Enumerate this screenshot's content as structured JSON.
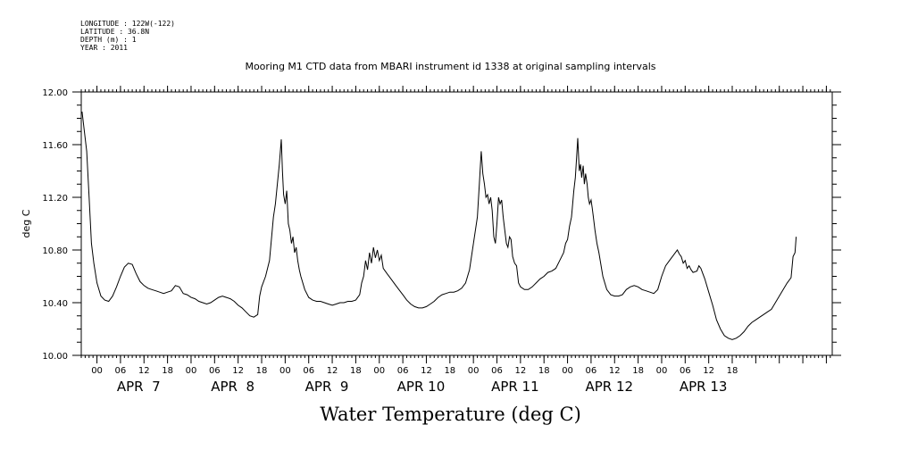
{
  "header": {
    "longitude": "LONGITUDE : 122W(-122)",
    "latitude": "LATITUDE : 36.8N",
    "depth": "DEPTH (m) : 1",
    "year": "YEAR : 2011",
    "title": "Mooring M1 CTD data from MBARI instrument id 1338 at original sampling intervals"
  },
  "footer": {
    "variable_title": "Water Temperature (deg C)"
  },
  "chart_data": {
    "type": "line",
    "title": "Mooring M1 CTD data from MBARI instrument id 1338 at original sampling intervals",
    "xlabel": "",
    "ylabel": "deg C",
    "ylim": [
      10.0,
      12.0
    ],
    "xlim_hours": [
      -4,
      19.5
    ],
    "y_ticks": [
      "10.00",
      "10.40",
      "10.80",
      "11.20",
      "11.60",
      "12.00"
    ],
    "x_tick_labels": [
      "00",
      "06",
      "12",
      "18",
      "00",
      "06",
      "12",
      "18",
      "00",
      "06",
      "12",
      "18",
      "00",
      "06",
      "12",
      "18",
      "00",
      "06",
      "12",
      "18",
      "00",
      "06",
      "12",
      "18",
      "00",
      "06",
      "12",
      "18"
    ],
    "day_labels": [
      "APR  7",
      "APR  8",
      "APR  9",
      "APR 10",
      "APR 11",
      "APR 12",
      "APR 13"
    ],
    "grid": false,
    "series": [
      {
        "values": [
          [
            -3.8,
            11.85
          ],
          [
            -3.2,
            11.7
          ],
          [
            -2.6,
            11.55
          ],
          [
            -2.0,
            11.2
          ],
          [
            -1.4,
            10.85
          ],
          [
            -0.8,
            10.7
          ],
          [
            0.0,
            10.55
          ],
          [
            1.0,
            10.45
          ],
          [
            2.0,
            10.42
          ],
          [
            3.0,
            10.41
          ],
          [
            4.0,
            10.45
          ],
          [
            5.0,
            10.52
          ],
          [
            6.0,
            10.6
          ],
          [
            7.0,
            10.67
          ],
          [
            8.0,
            10.7
          ],
          [
            9.0,
            10.69
          ],
          [
            10.0,
            10.62
          ],
          [
            11.0,
            10.56
          ],
          [
            12.0,
            10.53
          ],
          [
            13.0,
            10.51
          ],
          [
            14.0,
            10.5
          ],
          [
            15.0,
            10.49
          ],
          [
            16.0,
            10.48
          ],
          [
            17.0,
            10.47
          ],
          [
            18.0,
            10.48
          ],
          [
            19.0,
            10.49
          ],
          [
            20.0,
            10.53
          ],
          [
            21.0,
            10.52
          ],
          [
            22.0,
            10.47
          ],
          [
            23.0,
            10.46
          ],
          [
            24.0,
            10.44
          ],
          [
            25.0,
            10.43
          ],
          [
            26.0,
            10.41
          ],
          [
            27.0,
            10.4
          ],
          [
            28.0,
            10.39
          ],
          [
            29.0,
            10.4
          ],
          [
            30.0,
            10.42
          ],
          [
            31.0,
            10.44
          ],
          [
            32.0,
            10.45
          ],
          [
            33.0,
            10.44
          ],
          [
            34.0,
            10.43
          ],
          [
            35.0,
            10.41
          ],
          [
            36.0,
            10.38
          ],
          [
            37.0,
            10.36
          ],
          [
            38.0,
            10.33
          ],
          [
            39.0,
            10.3
          ],
          [
            40.0,
            10.29
          ],
          [
            41.0,
            10.31
          ],
          [
            41.5,
            10.45
          ],
          [
            42.0,
            10.52
          ],
          [
            43.0,
            10.6
          ],
          [
            44.0,
            10.72
          ],
          [
            45.0,
            11.05
          ],
          [
            45.5,
            11.15
          ],
          [
            46.0,
            11.3
          ],
          [
            46.5,
            11.45
          ],
          [
            47.0,
            11.64
          ],
          [
            47.3,
            11.4
          ],
          [
            47.6,
            11.22
          ],
          [
            48.0,
            11.15
          ],
          [
            48.4,
            11.25
          ],
          [
            48.8,
            11.0
          ],
          [
            49.2,
            10.95
          ],
          [
            49.6,
            10.85
          ],
          [
            50.0,
            10.9
          ],
          [
            50.4,
            10.78
          ],
          [
            50.8,
            10.82
          ],
          [
            51.2,
            10.72
          ],
          [
            51.6,
            10.65
          ],
          [
            52.0,
            10.6
          ],
          [
            53.0,
            10.5
          ],
          [
            54.0,
            10.44
          ],
          [
            55.0,
            10.42
          ],
          [
            56.0,
            10.41
          ],
          [
            57.0,
            10.41
          ],
          [
            58.0,
            10.4
          ],
          [
            59.0,
            10.39
          ],
          [
            60.0,
            10.38
          ],
          [
            61.0,
            10.39
          ],
          [
            62.0,
            10.4
          ],
          [
            63.0,
            10.4
          ],
          [
            64.0,
            10.41
          ],
          [
            65.0,
            10.41
          ],
          [
            66.0,
            10.42
          ],
          [
            67.0,
            10.46
          ],
          [
            67.5,
            10.55
          ],
          [
            68.0,
            10.6
          ],
          [
            68.5,
            10.72
          ],
          [
            69.0,
            10.65
          ],
          [
            69.5,
            10.78
          ],
          [
            70.0,
            10.7
          ],
          [
            70.5,
            10.82
          ],
          [
            71.0,
            10.74
          ],
          [
            71.5,
            10.8
          ],
          [
            72.0,
            10.72
          ],
          [
            72.5,
            10.76
          ],
          [
            73.0,
            10.66
          ],
          [
            74.0,
            10.62
          ],
          [
            75.0,
            10.58
          ],
          [
            76.0,
            10.54
          ],
          [
            77.0,
            10.5
          ],
          [
            78.0,
            10.46
          ],
          [
            79.0,
            10.42
          ],
          [
            80.0,
            10.39
          ],
          [
            81.0,
            10.37
          ],
          [
            82.0,
            10.36
          ],
          [
            83.0,
            10.36
          ],
          [
            84.0,
            10.37
          ],
          [
            85.0,
            10.39
          ],
          [
            86.0,
            10.41
          ],
          [
            87.0,
            10.44
          ],
          [
            88.0,
            10.46
          ],
          [
            89.0,
            10.47
          ],
          [
            90.0,
            10.48
          ],
          [
            91.0,
            10.48
          ],
          [
            92.0,
            10.49
          ],
          [
            93.0,
            10.51
          ],
          [
            94.0,
            10.55
          ],
          [
            95.0,
            10.65
          ],
          [
            96.0,
            10.85
          ],
          [
            97.0,
            11.05
          ],
          [
            97.5,
            11.3
          ],
          [
            98.0,
            11.55
          ],
          [
            98.4,
            11.38
          ],
          [
            98.8,
            11.3
          ],
          [
            99.2,
            11.2
          ],
          [
            99.6,
            11.22
          ],
          [
            100.0,
            11.15
          ],
          [
            100.4,
            11.2
          ],
          [
            100.8,
            11.1
          ],
          [
            101.2,
            10.9
          ],
          [
            101.6,
            10.85
          ],
          [
            102.0,
            11.0
          ],
          [
            102.4,
            11.2
          ],
          [
            102.8,
            11.15
          ],
          [
            103.2,
            11.18
          ],
          [
            103.6,
            11.05
          ],
          [
            104.0,
            10.95
          ],
          [
            104.4,
            10.85
          ],
          [
            104.8,
            10.82
          ],
          [
            105.2,
            10.9
          ],
          [
            105.6,
            10.88
          ],
          [
            106.0,
            10.75
          ],
          [
            106.5,
            10.7
          ],
          [
            107.0,
            10.68
          ],
          [
            107.5,
            10.55
          ],
          [
            108.0,
            10.52
          ],
          [
            109.0,
            10.5
          ],
          [
            110.0,
            10.5
          ],
          [
            111.0,
            10.52
          ],
          [
            112.0,
            10.55
          ],
          [
            113.0,
            10.58
          ],
          [
            114.0,
            10.6
          ],
          [
            115.0,
            10.63
          ],
          [
            116.0,
            10.64
          ],
          [
            117.0,
            10.66
          ],
          [
            118.0,
            10.72
          ],
          [
            119.0,
            10.78
          ],
          [
            119.5,
            10.85
          ],
          [
            120.0,
            10.88
          ],
          [
            120.5,
            10.98
          ],
          [
            121.0,
            11.05
          ],
          [
            121.3,
            11.15
          ],
          [
            121.6,
            11.25
          ],
          [
            122.0,
            11.35
          ],
          [
            122.3,
            11.5
          ],
          [
            122.6,
            11.65
          ],
          [
            123.0,
            11.4
          ],
          [
            123.3,
            11.45
          ],
          [
            123.6,
            11.35
          ],
          [
            124.0,
            11.44
          ],
          [
            124.3,
            11.3
          ],
          [
            124.6,
            11.38
          ],
          [
            125.0,
            11.3
          ],
          [
            125.3,
            11.2
          ],
          [
            125.6,
            11.15
          ],
          [
            126.0,
            11.18
          ],
          [
            126.3,
            11.12
          ],
          [
            126.6,
            11.05
          ],
          [
            127.0,
            10.95
          ],
          [
            127.5,
            10.85
          ],
          [
            128.0,
            10.78
          ],
          [
            129.0,
            10.6
          ],
          [
            130.0,
            10.5
          ],
          [
            131.0,
            10.46
          ],
          [
            132.0,
            10.45
          ],
          [
            133.0,
            10.45
          ],
          [
            134.0,
            10.46
          ],
          [
            135.0,
            10.5
          ],
          [
            136.0,
            10.52
          ],
          [
            137.0,
            10.53
          ],
          [
            138.0,
            10.52
          ],
          [
            139.0,
            10.5
          ],
          [
            140.0,
            10.49
          ],
          [
            141.0,
            10.48
          ],
          [
            142.0,
            10.47
          ],
          [
            143.0,
            10.5
          ],
          [
            144.0,
            10.6
          ],
          [
            145.0,
            10.68
          ],
          [
            146.0,
            10.72
          ],
          [
            147.0,
            10.76
          ],
          [
            148.0,
            10.8
          ],
          [
            148.5,
            10.77
          ],
          [
            149.0,
            10.75
          ],
          [
            149.5,
            10.7
          ],
          [
            150.0,
            10.72
          ],
          [
            150.5,
            10.66
          ],
          [
            151.0,
            10.68
          ],
          [
            151.5,
            10.65
          ],
          [
            152.0,
            10.63
          ],
          [
            153.0,
            10.64
          ],
          [
            153.5,
            10.68
          ],
          [
            154.0,
            10.66
          ],
          [
            154.5,
            10.62
          ],
          [
            155.0,
            10.58
          ],
          [
            156.0,
            10.48
          ],
          [
            157.0,
            10.38
          ],
          [
            158.0,
            10.27
          ],
          [
            159.0,
            10.2
          ],
          [
            160.0,
            10.15
          ],
          [
            161.0,
            10.13
          ],
          [
            162.0,
            10.12
          ],
          [
            163.0,
            10.13
          ],
          [
            164.0,
            10.15
          ],
          [
            165.0,
            10.18
          ],
          [
            166.0,
            10.22
          ],
          [
            167.0,
            10.25
          ],
          [
            168.0,
            10.27
          ],
          [
            169.0,
            10.29
          ],
          [
            170.0,
            10.31
          ],
          [
            171.0,
            10.33
          ],
          [
            172.0,
            10.35
          ],
          [
            173.0,
            10.4
          ],
          [
            174.0,
            10.45
          ],
          [
            175.0,
            10.5
          ],
          [
            176.0,
            10.55
          ],
          [
            177.0,
            10.59
          ],
          [
            177.5,
            10.75
          ],
          [
            178.0,
            10.78
          ],
          [
            178.3,
            10.9
          ]
        ]
      }
    ]
  }
}
